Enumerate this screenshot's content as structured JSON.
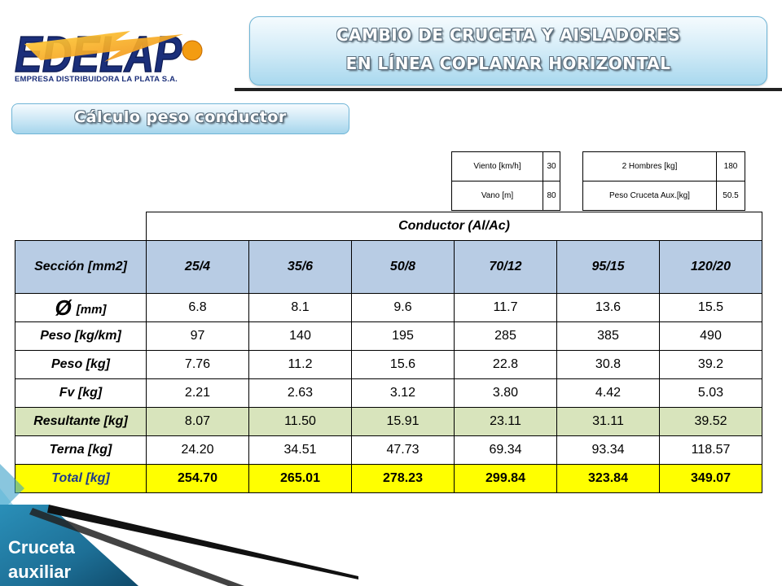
{
  "logo": {
    "name": "EDELAP",
    "subtitle": "EMPRESA DISTRIBUIDORA LA PLATA S.A."
  },
  "header": {
    "title_line1": "CAMBIO DE CRUCETA Y AISLADORES",
    "title_line2": "EN LÍNEA COPLANAR HORIZONTAL"
  },
  "section": {
    "subtitle": "Cálculo peso conductor"
  },
  "params_left": [
    {
      "label": "Viento [km/h]",
      "value": "30"
    },
    {
      "label": "Vano [m]",
      "value": "80"
    }
  ],
  "params_right": [
    {
      "label": "2 Hombres [kg]",
      "value": "180"
    },
    {
      "label": "Peso Cruceta Aux.[kg]",
      "value": "50.5"
    }
  ],
  "table": {
    "group_header": "Conductor (Al/Ac)",
    "section_label": "Sección [mm2]",
    "sections": [
      "25/4",
      "35/6",
      "50/8",
      "70/12",
      "95/15",
      "120/20"
    ],
    "diam_symbol": "Ø",
    "diam_unit": "[mm]",
    "diameters": [
      "6.8",
      "8.1",
      "9.6",
      "11.7",
      "13.6",
      "15.5"
    ],
    "rows": {
      "peso_km": {
        "label": "Peso [kg/km]",
        "values": [
          "97",
          "140",
          "195",
          "285",
          "385",
          "490"
        ]
      },
      "peso": {
        "label": "Peso [kg]",
        "values": [
          "7.76",
          "11.2",
          "15.6",
          "22.8",
          "30.8",
          "39.2"
        ]
      },
      "fv": {
        "label": "Fv [kg]",
        "values": [
          "2.21",
          "2.63",
          "3.12",
          "3.80",
          "4.42",
          "5.03"
        ]
      },
      "resultante": {
        "label": "Resultante [kg]",
        "values": [
          "8.07",
          "11.50",
          "15.91",
          "23.11",
          "31.11",
          "39.52"
        ]
      },
      "terna": {
        "label": "Terna [kg]",
        "values": [
          "24.20",
          "34.51",
          "47.73",
          "69.34",
          "93.34",
          "118.57"
        ]
      },
      "total": {
        "label": "Total [kg]",
        "values": [
          "254.70",
          "265.01",
          "278.23",
          "299.84",
          "323.84",
          "349.07"
        ]
      }
    }
  },
  "footer": {
    "line1": "Cruceta",
    "line2": "auxiliar"
  },
  "colors": {
    "section_row": "#b8cce4",
    "resultante_row": "#d8e4bc",
    "total_row": "#ffff00",
    "logo_blue": "#1b2f7a",
    "logo_orange": "#f39c12"
  }
}
